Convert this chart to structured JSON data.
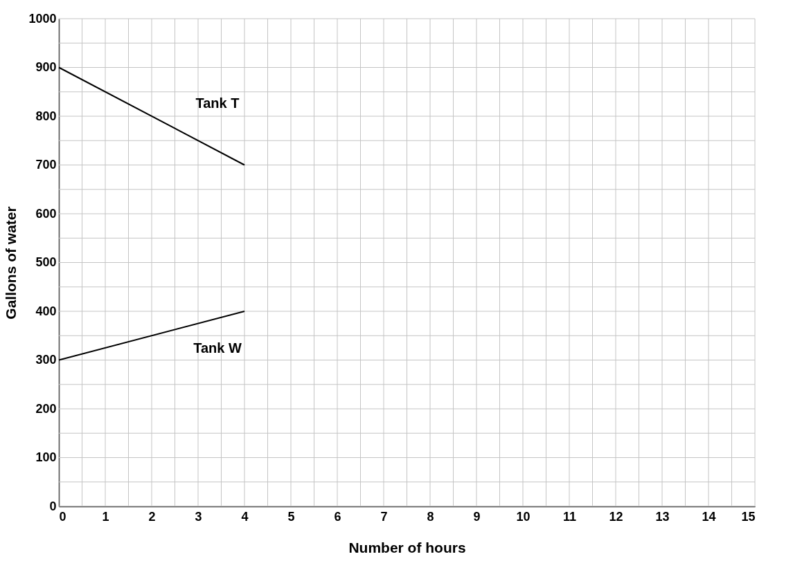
{
  "chart_data": {
    "type": "line",
    "xlabel": "Number of hours",
    "ylabel": "Gallons of water",
    "xlim": [
      0,
      15
    ],
    "ylim": [
      0,
      1000
    ],
    "xticks": [
      0,
      {
        "value": 0.5,
        "label": null
      },
      1,
      {
        "value": 1.5,
        "label": null
      },
      2,
      {
        "value": 2.5,
        "label": null
      },
      3,
      {
        "value": 3.5,
        "label": null
      },
      4,
      {
        "value": 4.5,
        "label": null
      },
      5,
      {
        "value": 5.5,
        "label": null
      },
      6,
      {
        "value": 6.5,
        "label": null
      },
      7,
      {
        "value": 7.5,
        "label": null
      },
      8,
      {
        "value": 8.5,
        "label": null
      },
      9,
      {
        "value": 9.5,
        "label": null
      },
      10,
      {
        "value": 10.5,
        "label": null
      },
      11,
      {
        "value": 11.5,
        "label": null
      },
      12,
      {
        "value": 12.5,
        "label": null
      },
      13,
      {
        "value": 13.5,
        "label": null
      },
      14,
      {
        "value": 14.5,
        "label": null
      },
      15
    ],
    "yticks": [
      0,
      {
        "value": 50,
        "label": null
      },
      100,
      {
        "value": 150,
        "label": null
      },
      200,
      {
        "value": 250,
        "label": null
      },
      300,
      {
        "value": 350,
        "label": null
      },
      400,
      {
        "value": 450,
        "label": null
      },
      500,
      {
        "value": 550,
        "label": null
      },
      600,
      {
        "value": 650,
        "label": null
      },
      700,
      {
        "value": 750,
        "label": null
      },
      800,
      {
        "value": 850,
        "label": null
      },
      900,
      {
        "value": 950,
        "label": null
      },
      1000
    ],
    "grid": true,
    "marker": "none",
    "line_style": "solid",
    "x": [
      0,
      4
    ],
    "series": [
      {
        "name": "Tank T",
        "color": "#000000",
        "values": [
          900,
          700
        ]
      },
      {
        "name": "Tank W",
        "color": "#000000",
        "values": [
          300,
          400
        ]
      }
    ]
  }
}
